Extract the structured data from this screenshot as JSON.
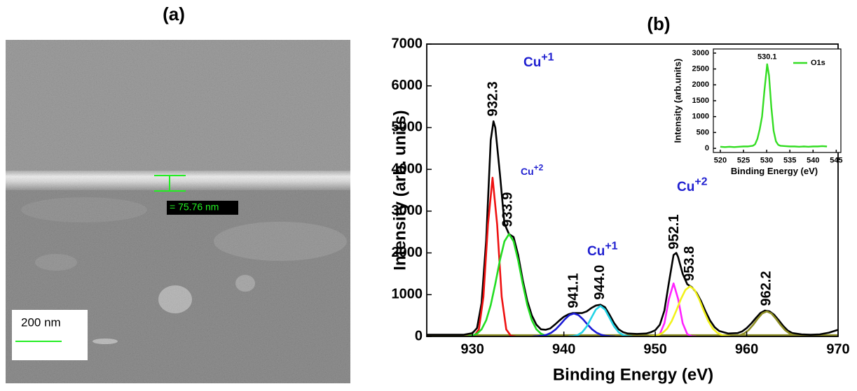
{
  "panel_a": {
    "label": "(a)",
    "scale_bar": "200 nm",
    "measurement": "= 75.76 nm"
  },
  "chart_data": [
    {
      "type": "line",
      "title": "(b)",
      "xlabel": "Binding Energy (eV)",
      "ylabel": "Intensity (arb. units)",
      "xlim": [
        925,
        970
      ],
      "ylim": [
        0,
        7000
      ],
      "xticks": [
        930,
        940,
        950,
        960,
        970
      ],
      "yticks": [
        0,
        1000,
        2000,
        3000,
        4000,
        5000,
        6000,
        7000
      ],
      "series": [
        {
          "color": "#8f8f26",
          "x": [
            925,
            970
          ],
          "values": [
            30,
            30
          ]
        },
        {
          "color": "#000000",
          "x": [
            925,
            926,
            927,
            928,
            929,
            930,
            930.5,
            931,
            931.5,
            932,
            932.3,
            932.5,
            933,
            933.5,
            934,
            934.5,
            935,
            935.5,
            936,
            936.5,
            937,
            937.5,
            938,
            938.5,
            939,
            939.5,
            940,
            940.5,
            941,
            941.5,
            942,
            942.5,
            943,
            943.5,
            944,
            944.5,
            945,
            945.5,
            946,
            946.5,
            947,
            948,
            949,
            949.5,
            950,
            950.5,
            951,
            951.5,
            952,
            952.3,
            952.5,
            953,
            953.5,
            954,
            954.5,
            955,
            955.5,
            956,
            956.5,
            957,
            958,
            959,
            959.5,
            960,
            960.5,
            961,
            961.5,
            962,
            962.5,
            963,
            963.5,
            964,
            964.5,
            965,
            966,
            967,
            968,
            969,
            970
          ],
          "values": [
            40,
            40,
            40,
            40,
            40,
            80,
            200,
            800,
            2300,
            4700,
            5150,
            5000,
            3900,
            2700,
            2450,
            2380,
            1950,
            1350,
            850,
            500,
            280,
            170,
            160,
            190,
            280,
            380,
            470,
            530,
            560,
            560,
            560,
            600,
            680,
            740,
            760,
            700,
            520,
            320,
            170,
            100,
            70,
            60,
            70,
            100,
            150,
            280,
            620,
            1300,
            1950,
            2000,
            1900,
            1500,
            1250,
            1180,
            1050,
            850,
            600,
            380,
            220,
            130,
            70,
            80,
            120,
            200,
            310,
            440,
            560,
            620,
            600,
            520,
            390,
            250,
            140,
            80,
            50,
            40,
            50,
            90,
            160
          ]
        },
        {
          "color": "#ee1111",
          "x": [
            929.7,
            930.2,
            930.7,
            931.2,
            931.7,
            932.2,
            932.7,
            933.2,
            933.7,
            934.2,
            934.7
          ],
          "values": [
            0,
            15,
            167,
            947,
            2686,
            3800,
            2686,
            947,
            167,
            15,
            0
          ]
        },
        {
          "color": "#22dd22",
          "x": [
            929.5,
            930,
            930.5,
            931,
            931.5,
            932,
            932.5,
            933,
            933.5,
            934,
            934.5,
            935,
            935.5,
            936,
            936.5,
            937,
            937.5,
            938,
            938.5
          ],
          "values": [
            0,
            22,
            65,
            170,
            386,
            751,
            1259,
            1822,
            2276,
            2450,
            2276,
            1822,
            1259,
            751,
            386,
            170,
            65,
            22,
            0
          ]
        },
        {
          "color": "#1b1bd6",
          "x": [
            936.6,
            937.1,
            937.6,
            938.1,
            938.6,
            939.1,
            939.6,
            940.1,
            940.6,
            941.1,
            941.6,
            942.1,
            942.6,
            943.1,
            943.6,
            944.1,
            944.6,
            945.1,
            945.6
          ],
          "values": [
            0,
            5,
            15,
            39,
            86,
            168,
            283,
            409,
            511,
            550,
            511,
            409,
            283,
            168,
            86,
            39,
            15,
            5,
            0
          ]
        },
        {
          "color": "#22d3e6",
          "x": [
            940.5,
            941,
            941.5,
            942,
            942.5,
            943,
            943.5,
            944,
            944.5,
            945,
            945.5,
            946,
            946.5,
            947,
            947.5
          ],
          "values": [
            0,
            8,
            32,
            99,
            237,
            443,
            644,
            730,
            644,
            443,
            237,
            99,
            32,
            8,
            0
          ]
        },
        {
          "color": "#ff22ff",
          "x": [
            949.5,
            950,
            950.5,
            951,
            951.5,
            952,
            952.5,
            953,
            953.5,
            954,
            954.5
          ],
          "values": [
            0,
            5,
            56,
            316,
            898,
            1270,
            898,
            316,
            56,
            5,
            0
          ]
        },
        {
          "color": "#f2f21a",
          "x": [
            949.3,
            949.8,
            950.3,
            950.8,
            951.3,
            951.8,
            952.3,
            952.8,
            953.3,
            953.8,
            954.3,
            954.8,
            955.3,
            955.8,
            956.3,
            956.8,
            957.3,
            957.8,
            958.3
          ],
          "values": [
            0,
            11,
            32,
            84,
            188,
            367,
            617,
            893,
            1115,
            1200,
            1115,
            893,
            617,
            367,
            188,
            84,
            32,
            11,
            0
          ]
        },
        {
          "color": "#8f8f26",
          "x": [
            958.2,
            958.7,
            959.2,
            959.7,
            960.2,
            960.7,
            961.2,
            961.7,
            962.2,
            962.7,
            963.2,
            963.7,
            964.2,
            964.7,
            965.2,
            965.7,
            966.2
          ],
          "values": [
            0,
            8,
            26,
            69,
            150,
            275,
            424,
            550,
            600,
            550,
            424,
            275,
            150,
            69,
            26,
            8,
            0
          ]
        }
      ],
      "peak_labels": [
        932.3,
        933.9,
        941.1,
        {
          "value": 944.0,
          "label": "944.0"
        },
        952.1,
        953.8,
        962.2
      ],
      "annotations": [
        {
          "text": "Cu",
          "sup": "+1"
        },
        {
          "text": "Cu",
          "sup": "+2"
        },
        {
          "text": "Cu",
          "sup": "+1"
        },
        {
          "text": "Cu",
          "sup": "+2"
        }
      ],
      "annotation_color": "#1f1fd0"
    },
    {
      "type": "line",
      "xlabel": "Binding Energy (eV)",
      "ylabel": "Intensity (arb.units)",
      "xlim": [
        518.5,
        546
      ],
      "ylim": [
        -130,
        3130
      ],
      "xticks": [
        520,
        525,
        530,
        535,
        540,
        545
      ],
      "yticks": [
        0,
        500,
        1000,
        1500,
        2000,
        2500,
        3000
      ],
      "series": [
        {
          "name": "O1s",
          "color": "#33dd22",
          "x": [
            520,
            521,
            522,
            523,
            524,
            525,
            526,
            527,
            527.5,
            528,
            528.5,
            529,
            529.5,
            530,
            530.1,
            530.5,
            531,
            531.5,
            532,
            532.5,
            533,
            534,
            535,
            536,
            537,
            538,
            539,
            540,
            541,
            542,
            543
          ],
          "values": [
            50,
            40,
            50,
            40,
            50,
            60,
            60,
            80,
            130,
            300,
            600,
            1000,
            1800,
            2500,
            2650,
            2300,
            1300,
            550,
            220,
            110,
            80,
            70,
            60,
            60,
            50,
            60,
            50,
            60,
            60,
            70,
            60
          ]
        }
      ],
      "peak_labels": [
        530.1
      ],
      "legend": "upper right"
    }
  ]
}
